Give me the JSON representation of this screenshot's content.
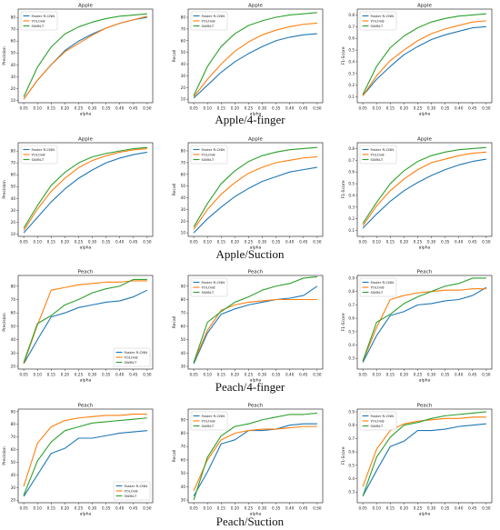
{
  "captions": [
    "Apple/4-finger",
    "Apple/Suction",
    "Peach/4-finger",
    "Peach/Suction"
  ],
  "colors": {
    "Faster R-CNN": "#1f77b4",
    "YOLOv8": "#ff7f0e",
    "SWIN-T": "#2ca02c"
  },
  "chart_data": [
    {
      "type": "line",
      "title": "Apple",
      "xlabel": "alpha",
      "ylabel": "Precision",
      "x": [
        0.05,
        0.1,
        0.15,
        0.2,
        0.25,
        0.3,
        0.35,
        0.4,
        0.45,
        0.5
      ],
      "xticks": [
        "0.05",
        "0.10",
        "0.15",
        "0.20",
        "0.25",
        "0.30",
        "0.35",
        "0.40",
        "0.45",
        "0.50"
      ],
      "ylim": [
        8,
        87
      ],
      "yticks": [
        10,
        20,
        30,
        40,
        50,
        60,
        70,
        80
      ],
      "legend": "upper left",
      "series": [
        {
          "name": "Faster R-CNN",
          "values": [
            11,
            27,
            40,
            52,
            60,
            66,
            71,
            75,
            78,
            80
          ]
        },
        {
          "name": "YOLOv8",
          "values": [
            11,
            27,
            40,
            51,
            58,
            65,
            71,
            75,
            78,
            81
          ]
        },
        {
          "name": "SWIN-T",
          "values": [
            13,
            38,
            55,
            66,
            72,
            76,
            79,
            81,
            82,
            83
          ]
        }
      ]
    },
    {
      "type": "line",
      "title": "Apple",
      "xlabel": "alpha",
      "ylabel": "Recall",
      "x": [
        0.05,
        0.1,
        0.15,
        0.2,
        0.25,
        0.3,
        0.35,
        0.4,
        0.45,
        0.5
      ],
      "xticks": [
        "0.05",
        "0.10",
        "0.15",
        "0.20",
        "0.25",
        "0.30",
        "0.35",
        "0.40",
        "0.45",
        "0.50"
      ],
      "ylim": [
        7,
        87
      ],
      "yticks": [
        10,
        20,
        30,
        40,
        50,
        60,
        70,
        80
      ],
      "legend": "upper left",
      "series": [
        {
          "name": "Faster R-CNN",
          "values": [
            11,
            22,
            33,
            42,
            49,
            55,
            60,
            63,
            65,
            66
          ]
        },
        {
          "name": "YOLOv8",
          "values": [
            12,
            27,
            40,
            51,
            59,
            65,
            69,
            72,
            74,
            75
          ]
        },
        {
          "name": "SWIN-T",
          "values": [
            13,
            38,
            55,
            66,
            73,
            77,
            80,
            82,
            83,
            84
          ]
        }
      ]
    },
    {
      "type": "line",
      "title": "Apple",
      "xlabel": "alpha",
      "ylabel": "F1-Score",
      "x": [
        0.05,
        0.1,
        0.15,
        0.2,
        0.25,
        0.3,
        0.35,
        0.4,
        0.45,
        0.5
      ],
      "xticks": [
        "0.05",
        "0.10",
        "0.15",
        "0.20",
        "0.25",
        "0.30",
        "0.35",
        "0.40",
        "0.45",
        "0.50"
      ],
      "ylim": [
        0.05,
        0.85
      ],
      "yticks": [
        "0.1",
        "0.2",
        "0.3",
        "0.4",
        "0.5",
        "0.6",
        "0.7",
        "0.8"
      ],
      "legend": "upper left",
      "series": [
        {
          "name": "Faster R-CNN",
          "values": [
            0.11,
            0.25,
            0.36,
            0.46,
            0.53,
            0.59,
            0.63,
            0.66,
            0.69,
            0.7
          ]
        },
        {
          "name": "YOLOv8",
          "values": [
            0.11,
            0.28,
            0.41,
            0.5,
            0.58,
            0.64,
            0.68,
            0.71,
            0.74,
            0.75
          ]
        },
        {
          "name": "SWIN-T",
          "values": [
            0.12,
            0.36,
            0.52,
            0.62,
            0.69,
            0.74,
            0.77,
            0.79,
            0.8,
            0.81
          ]
        }
      ]
    },
    {
      "type": "line",
      "title": "Apple",
      "xlabel": "alpha",
      "ylabel": "Precision",
      "x": [
        0.05,
        0.1,
        0.15,
        0.2,
        0.25,
        0.3,
        0.35,
        0.4,
        0.45,
        0.5
      ],
      "xticks": [
        "0.05",
        "0.10",
        "0.15",
        "0.20",
        "0.25",
        "0.30",
        "0.35",
        "0.40",
        "0.45",
        "0.50"
      ],
      "ylim": [
        8,
        87
      ],
      "yticks": [
        10,
        20,
        30,
        40,
        50,
        60,
        70,
        80
      ],
      "legend": "upper left",
      "series": [
        {
          "name": "Faster R-CNN",
          "values": [
            11,
            24,
            37,
            48,
            57,
            64,
            70,
            74,
            77,
            79
          ]
        },
        {
          "name": "YOLOv8",
          "values": [
            13,
            31,
            46,
            57,
            66,
            72,
            76,
            79,
            81,
            82
          ]
        },
        {
          "name": "SWIN-T",
          "values": [
            15,
            34,
            51,
            62,
            70,
            75,
            78,
            80,
            82,
            83
          ]
        }
      ]
    },
    {
      "type": "line",
      "title": "Apple",
      "xlabel": "alpha",
      "ylabel": "Recall",
      "x": [
        0.05,
        0.1,
        0.15,
        0.2,
        0.25,
        0.3,
        0.35,
        0.4,
        0.45,
        0.5
      ],
      "xticks": [
        "0.05",
        "0.10",
        "0.15",
        "0.20",
        "0.25",
        "0.30",
        "0.35",
        "0.40",
        "0.45",
        "0.50"
      ],
      "ylim": [
        7,
        87
      ],
      "yticks": [
        10,
        20,
        30,
        40,
        50,
        60,
        70,
        80
      ],
      "legend": "upper left",
      "series": [
        {
          "name": "Faster R-CNN",
          "values": [
            10,
            22,
            32,
            41,
            48,
            54,
            58,
            62,
            64,
            66
          ]
        },
        {
          "name": "YOLOv8",
          "values": [
            13,
            30,
            43,
            53,
            61,
            66,
            70,
            72,
            74,
            75
          ]
        },
        {
          "name": "SWIN-T",
          "values": [
            15,
            35,
            52,
            63,
            71,
            76,
            79,
            81,
            82,
            83
          ]
        }
      ]
    },
    {
      "type": "line",
      "title": "Apple",
      "xlabel": "alpha",
      "ylabel": "F1-Score",
      "x": [
        0.05,
        0.1,
        0.15,
        0.2,
        0.25,
        0.3,
        0.35,
        0.4,
        0.45,
        0.5
      ],
      "xticks": [
        "0.05",
        "0.10",
        "0.15",
        "0.20",
        "0.25",
        "0.30",
        "0.35",
        "0.40",
        "0.45",
        "0.50"
      ],
      "ylim": [
        0.05,
        0.85
      ],
      "yticks": [
        "0.1",
        "0.2",
        "0.3",
        "0.4",
        "0.5",
        "0.6",
        "0.7",
        "0.8"
      ],
      "legend": "upper left",
      "series": [
        {
          "name": "Faster R-CNN",
          "values": [
            0.12,
            0.24,
            0.35,
            0.44,
            0.51,
            0.57,
            0.62,
            0.66,
            0.69,
            0.71
          ]
        },
        {
          "name": "YOLOv8",
          "values": [
            0.14,
            0.31,
            0.44,
            0.54,
            0.62,
            0.68,
            0.71,
            0.74,
            0.76,
            0.77
          ]
        },
        {
          "name": "SWIN-T",
          "values": [
            0.16,
            0.34,
            0.5,
            0.61,
            0.69,
            0.74,
            0.77,
            0.79,
            0.8,
            0.81
          ]
        }
      ]
    },
    {
      "type": "line",
      "title": "Peach",
      "xlabel": "alpha",
      "ylabel": "Precision",
      "x": [
        0.05,
        0.1,
        0.15,
        0.2,
        0.25,
        0.3,
        0.35,
        0.4,
        0.45,
        0.5
      ],
      "xticks": [
        "0.05",
        "0.10",
        "0.15",
        "0.20",
        "0.25",
        "0.30",
        "0.35",
        "0.40",
        "0.45",
        "0.50"
      ],
      "ylim": [
        18,
        88
      ],
      "yticks": [
        20,
        30,
        40,
        50,
        60,
        70,
        80
      ],
      "legend": "lower right",
      "series": [
        {
          "name": "Faster R-CNN",
          "values": [
            22,
            40,
            57,
            60,
            64,
            66,
            68,
            69,
            72,
            77
          ]
        },
        {
          "name": "YOLOv8",
          "values": [
            22,
            51,
            77,
            79,
            81,
            82,
            83,
            83,
            84,
            84
          ]
        },
        {
          "name": "SWIN-T",
          "values": [
            23,
            52,
            58,
            66,
            70,
            75,
            78,
            80,
            85,
            85
          ]
        }
      ]
    },
    {
      "type": "line",
      "title": "Peach",
      "xlabel": "alpha",
      "ylabel": "Recall",
      "x": [
        0.05,
        0.1,
        0.15,
        0.2,
        0.25,
        0.3,
        0.35,
        0.4,
        0.45,
        0.5
      ],
      "xticks": [
        "0.05",
        "0.10",
        "0.15",
        "0.20",
        "0.25",
        "0.30",
        "0.35",
        "0.40",
        "0.45",
        "0.50"
      ],
      "ylim": [
        28,
        98
      ],
      "yticks": [
        30,
        40,
        50,
        60,
        70,
        80,
        90
      ],
      "legend": "upper left",
      "series": [
        {
          "name": "Faster R-CNN",
          "values": [
            32,
            55,
            69,
            73,
            76,
            78,
            80,
            81,
            83,
            90
          ]
        },
        {
          "name": "YOLOv8",
          "values": [
            33,
            57,
            72,
            76,
            78,
            79,
            80,
            80,
            80,
            80
          ]
        },
        {
          "name": "SWIN-T",
          "values": [
            33,
            63,
            71,
            78,
            82,
            87,
            90,
            92,
            96,
            97
          ]
        }
      ]
    },
    {
      "type": "line",
      "title": "Peach",
      "xlabel": "alpha",
      "ylabel": "F1-Score",
      "x": [
        0.05,
        0.1,
        0.15,
        0.2,
        0.25,
        0.3,
        0.35,
        0.4,
        0.45,
        0.5
      ],
      "xticks": [
        "0.05",
        "0.10",
        "0.15",
        "0.20",
        "0.25",
        "0.30",
        "0.35",
        "0.40",
        "0.45",
        "0.50"
      ],
      "ylim": [
        0.22,
        0.92
      ],
      "yticks": [
        "0.3",
        "0.4",
        "0.5",
        "0.6",
        "0.7",
        "0.8",
        "0.9"
      ],
      "legend": "upper left",
      "series": [
        {
          "name": "Faster R-CNN",
          "values": [
            0.27,
            0.47,
            0.62,
            0.65,
            0.7,
            0.71,
            0.73,
            0.74,
            0.77,
            0.83
          ]
        },
        {
          "name": "YOLOv8",
          "values": [
            0.28,
            0.53,
            0.74,
            0.77,
            0.79,
            0.8,
            0.81,
            0.81,
            0.82,
            0.82
          ]
        },
        {
          "name": "SWIN-T",
          "values": [
            0.28,
            0.57,
            0.63,
            0.71,
            0.76,
            0.8,
            0.84,
            0.86,
            0.9,
            0.9
          ]
        }
      ]
    },
    {
      "type": "line",
      "title": "Peach",
      "xlabel": "alpha",
      "ylabel": "Precision",
      "x": [
        0.05,
        0.1,
        0.15,
        0.2,
        0.25,
        0.3,
        0.35,
        0.4,
        0.45,
        0.5
      ],
      "xticks": [
        "0.05",
        "0.10",
        "0.15",
        "0.20",
        "0.25",
        "0.30",
        "0.35",
        "0.40",
        "0.45",
        "0.50"
      ],
      "ylim": [
        18,
        92
      ],
      "yticks": [
        20,
        30,
        40,
        50,
        60,
        70,
        80,
        90
      ],
      "legend": "lower right",
      "series": [
        {
          "name": "Faster R-CNN",
          "values": [
            23,
            40,
            57,
            61,
            69,
            69,
            71,
            73,
            74,
            75
          ]
        },
        {
          "name": "YOLOv8",
          "values": [
            31,
            65,
            78,
            83,
            85,
            86,
            87,
            87,
            88,
            88
          ]
        },
        {
          "name": "SWIN-T",
          "values": [
            24,
            51,
            66,
            75,
            78,
            81,
            82,
            83,
            84,
            85
          ]
        }
      ]
    },
    {
      "type": "line",
      "title": "Peach",
      "xlabel": "alpha",
      "ylabel": "Recall",
      "x": [
        0.05,
        0.1,
        0.15,
        0.2,
        0.25,
        0.3,
        0.35,
        0.4,
        0.45,
        0.5
      ],
      "xticks": [
        "0.05",
        "0.10",
        "0.15",
        "0.20",
        "0.25",
        "0.30",
        "0.35",
        "0.40",
        "0.45",
        "0.50"
      ],
      "ylim": [
        28,
        98
      ],
      "yticks": [
        30,
        40,
        50,
        60,
        70,
        80,
        90
      ],
      "legend": "upper left",
      "series": [
        {
          "name": "Faster R-CNN",
          "values": [
            33,
            51,
            72,
            75,
            82,
            82,
            83,
            86,
            87,
            87
          ]
        },
        {
          "name": "YOLOv8",
          "values": [
            37,
            60,
            75,
            80,
            82,
            83,
            83,
            84,
            85,
            85
          ]
        },
        {
          "name": "SWIN-T",
          "values": [
            30,
            62,
            78,
            85,
            87,
            90,
            92,
            94,
            94,
            95
          ]
        }
      ]
    },
    {
      "type": "line",
      "title": "Peach",
      "xlabel": "alpha",
      "ylabel": "F1-Score",
      "x": [
        0.05,
        0.1,
        0.15,
        0.2,
        0.25,
        0.3,
        0.35,
        0.4,
        0.45,
        0.5
      ],
      "xticks": [
        "0.05",
        "0.10",
        "0.15",
        "0.20",
        "0.25",
        "0.30",
        "0.35",
        "0.40",
        "0.45",
        "0.50"
      ],
      "ylim": [
        0.22,
        0.92
      ],
      "yticks": [
        "0.3",
        "0.4",
        "0.5",
        "0.6",
        "0.7",
        "0.8",
        "0.9"
      ],
      "legend": "upper left",
      "series": [
        {
          "name": "Faster R-CNN",
          "values": [
            0.27,
            0.46,
            0.64,
            0.68,
            0.76,
            0.76,
            0.77,
            0.79,
            0.8,
            0.81
          ]
        },
        {
          "name": "YOLOv8",
          "values": [
            0.34,
            0.62,
            0.76,
            0.81,
            0.83,
            0.84,
            0.85,
            0.85,
            0.86,
            0.86
          ]
        },
        {
          "name": "SWIN-T",
          "values": [
            0.27,
            0.56,
            0.71,
            0.8,
            0.82,
            0.85,
            0.87,
            0.88,
            0.89,
            0.9
          ]
        }
      ]
    }
  ]
}
